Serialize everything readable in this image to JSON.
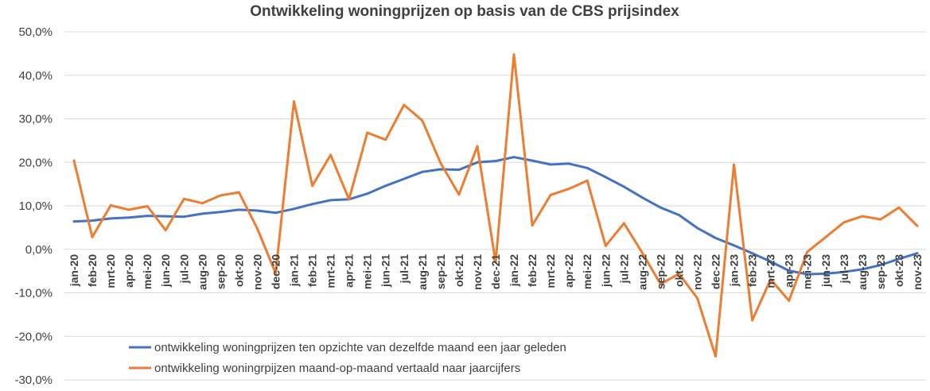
{
  "chart_data": {
    "type": "line",
    "title": "Ontwikkeling woningprijzen op basis van de CBS prijsindex",
    "xlabel": "",
    "ylabel": "",
    "ylim": [
      -30,
      50
    ],
    "ytick_step": 10,
    "ytick_labels": [
      "50,0%",
      "40,0%",
      "30,0%",
      "20,0%",
      "10,0%",
      "0,0%",
      "-10,0%",
      "-20,0%",
      "-30,0%"
    ],
    "grid": true,
    "legend_position": "bottom-center-inside",
    "categories": [
      "jan-20",
      "feb-20",
      "mrt-20",
      "apr-20",
      "mei-20",
      "jun-20",
      "jul-20",
      "aug-20",
      "sep-20",
      "okt-20",
      "nov-20",
      "dec-20",
      "jan-21",
      "feb-21",
      "mrt-21",
      "apr-21",
      "mei-21",
      "jun-21",
      "jul-21",
      "aug-21",
      "sep-21",
      "okt-21",
      "nov-21",
      "dec-21",
      "jan-22",
      "feb-22",
      "mrt-22",
      "apr-22",
      "mei-22",
      "jun-22",
      "jul-22",
      "aug-22",
      "sep-22",
      "okt-22",
      "nov-22",
      "dec-22",
      "jan-23",
      "feb-23",
      "mrt-23",
      "apr-23",
      "mei-23",
      "jun-23",
      "jul-23",
      "aug-23",
      "sep-23",
      "okt-23",
      "nov-23"
    ],
    "series": [
      {
        "name": "ontwikkeling woningprijzen ten opzichte van dezelfde maand een jaar geleden",
        "color": "#4472c4",
        "values": [
          6.4,
          6.6,
          7.1,
          7.3,
          7.7,
          7.6,
          7.5,
          8.2,
          8.6,
          9.1,
          8.9,
          8.4,
          9.3,
          10.4,
          11.3,
          11.5,
          12.8,
          14.6,
          16.2,
          17.8,
          18.4,
          18.3,
          20.0,
          20.3,
          21.2,
          20.4,
          19.5,
          19.7,
          18.7,
          16.6,
          14.4,
          11.9,
          9.6,
          7.9,
          4.9,
          2.6,
          0.9,
          -0.9,
          -2.8,
          -4.9,
          -5.7,
          -5.6,
          -5.2,
          -4.6,
          -3.6,
          -2.2,
          -0.9
        ]
      },
      {
        "name": "ontwikkeling woningrpijzen maand-op-maand vertaald naar jaarcijfers",
        "color": "#ed7d31",
        "values": [
          20.4,
          2.8,
          10.1,
          9.1,
          9.9,
          4.4,
          11.6,
          10.6,
          12.4,
          13.1,
          4.8,
          -5.5,
          34.0,
          14.6,
          21.7,
          11.5,
          26.8,
          25.2,
          33.2,
          29.6,
          19.8,
          12.6,
          23.7,
          -3.0,
          44.8,
          5.5,
          12.5,
          13.9,
          15.8,
          0.8,
          6.0,
          -0.8,
          -8.0,
          -5.6,
          -11.2,
          -24.6,
          19.5,
          -16.3,
          -6.9,
          -11.8,
          -0.6,
          2.8,
          6.2,
          7.6,
          6.9,
          9.6,
          5.4
        ]
      }
    ]
  }
}
